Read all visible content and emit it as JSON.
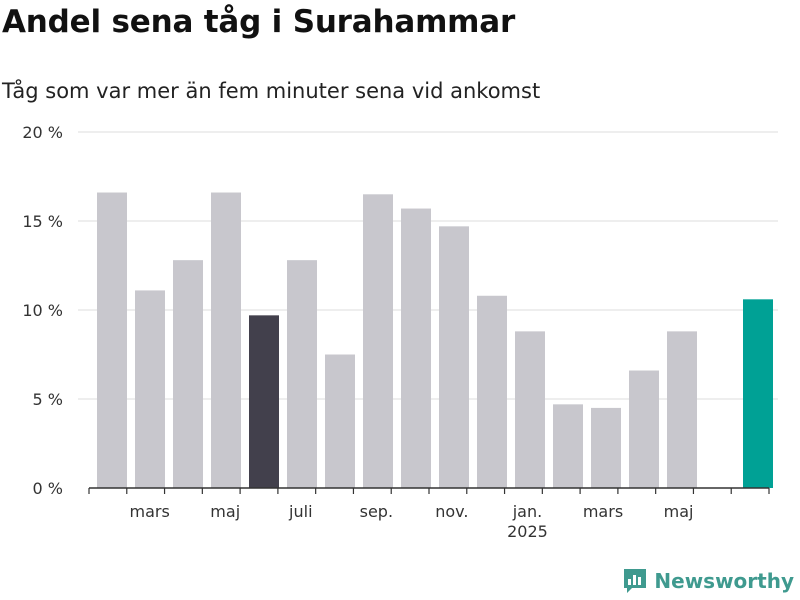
{
  "header": {
    "title": "Andel sena tåg i Surahammar",
    "subtitle": "Tåg som var mer än fem minuter sena vid ankomst"
  },
  "brand": {
    "name": "Newsworthy"
  },
  "colors": {
    "bar_default": "#c8c7cd",
    "bar_highlight_dark": "#42404c",
    "bar_highlight_current": "#00a195",
    "gridline": "#dcdcdc",
    "axis": "#333333",
    "brand": "#3f9a8f"
  },
  "chart_data": {
    "type": "bar",
    "title": "Andel sena tåg i Surahammar",
    "subtitle": "Tåg som var mer än fem minuter sena vid ankomst",
    "xlabel": "",
    "ylabel": "",
    "ylim": [
      0,
      20
    ],
    "yticks": [
      0,
      5,
      10,
      15,
      20
    ],
    "ytick_labels": [
      "0 %",
      "5 %",
      "10 %",
      "15 %",
      "20 %"
    ],
    "grid": true,
    "legend": "none",
    "categories": [
      "2024-02",
      "2024-03",
      "2024-04",
      "2024-05",
      "2024-06",
      "2024-07",
      "2024-08",
      "2024-09",
      "2024-10",
      "2024-11",
      "2024-12",
      "2025-01",
      "2025-02",
      "2025-03",
      "2025-04",
      "2025-05",
      "2025-06",
      "2025-07"
    ],
    "values": [
      16.6,
      11.1,
      12.8,
      16.6,
      9.7,
      12.8,
      7.5,
      16.5,
      15.7,
      14.7,
      10.8,
      8.8,
      4.7,
      4.5,
      6.6,
      8.8,
      0,
      10.6
    ],
    "highlight": {
      "dark": 4,
      "current": 17
    },
    "xtick_labels": [
      {
        "index": 1,
        "label": "mars",
        "sublabel": ""
      },
      {
        "index": 3,
        "label": "maj",
        "sublabel": ""
      },
      {
        "index": 5,
        "label": "juli",
        "sublabel": ""
      },
      {
        "index": 7,
        "label": "sep.",
        "sublabel": ""
      },
      {
        "index": 9,
        "label": "nov.",
        "sublabel": ""
      },
      {
        "index": 11,
        "label": "jan.",
        "sublabel": "2025"
      },
      {
        "index": 13,
        "label": "mars",
        "sublabel": ""
      },
      {
        "index": 15,
        "label": "maj",
        "sublabel": ""
      }
    ]
  }
}
